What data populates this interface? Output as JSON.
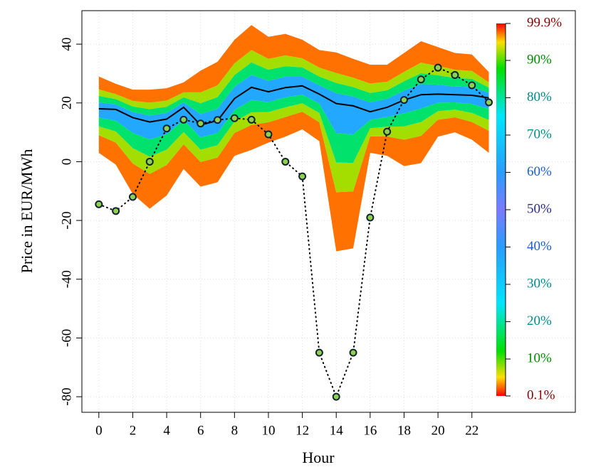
{
  "chart_data": {
    "type": "fan",
    "x_label": "Hour",
    "y_label": "Price in EUR/MWh",
    "x": [
      0,
      1,
      2,
      3,
      4,
      5,
      6,
      7,
      8,
      9,
      10,
      11,
      12,
      13,
      14,
      15,
      16,
      17,
      18,
      19,
      20,
      21,
      22,
      23
    ],
    "xlim": [
      -1,
      28.1
    ],
    "xticks": [
      0,
      2,
      4,
      6,
      8,
      10,
      12,
      14,
      16,
      18,
      20,
      22
    ],
    "ylim": [
      -85.3,
      51.4
    ],
    "yticks": [
      -80,
      -60,
      -40,
      -20,
      0,
      20,
      40
    ],
    "grid": true,
    "quantiles": [
      {
        "level": 0.1,
        "values": [
          3,
          -1,
          -11,
          -16,
          -11.5,
          -2.5,
          -8.5,
          -7,
          2,
          4,
          6.5,
          8.5,
          11,
          7,
          -30.5,
          -29.5,
          3,
          2,
          -1.5,
          -0.5,
          8.5,
          10,
          7.5,
          3
        ]
      },
      {
        "level": 5,
        "values": [
          9,
          6.5,
          -0.6,
          -4.2,
          -1.1,
          5.9,
          -0.1,
          1.4,
          9.8,
          12.5,
          13.4,
          15.2,
          17,
          13.4,
          -10.4,
          -10.1,
          8.6,
          8.6,
          7.5,
          8.8,
          14.3,
          15.1,
          13.5,
          10.5
        ]
      },
      {
        "level": 10,
        "values": [
          12,
          10.3,
          4.6,
          1.7,
          4.1,
          10.1,
          4.1,
          5.6,
          13.7,
          16.8,
          16.9,
          18.5,
          19.9,
          16.6,
          -0.3,
          -0.4,
          11.4,
          11.9,
          12,
          13.5,
          17.2,
          17.7,
          16.6,
          14.2
        ]
      },
      {
        "level": 25,
        "values": [
          15,
          14,
          9.8,
          7.6,
          9.3,
          14.3,
          8.3,
          9.8,
          17.6,
          21,
          20.3,
          21.9,
          22.8,
          19.8,
          9.7,
          9.3,
          14.2,
          15.2,
          16.5,
          18.1,
          20.1,
          20.2,
          19.6,
          18
        ]
      },
      {
        "level": 50,
        "values": [
          18,
          17.8,
          15,
          13.5,
          14.5,
          18.5,
          12.5,
          14,
          21.5,
          25.3,
          23.8,
          25.2,
          25.8,
          23,
          19.8,
          19,
          17,
          18.5,
          21,
          22.8,
          23,
          22.8,
          22.6,
          21.7
        ]
      },
      {
        "level": 75,
        "values": [
          20.2,
          19.5,
          16.9,
          15.7,
          16.6,
          20.2,
          16.2,
          18,
          25.5,
          29.5,
          27.5,
          28.9,
          28.9,
          26,
          23.3,
          22.2,
          20.2,
          21.4,
          24.2,
          26.4,
          26.2,
          25.6,
          25.4,
          23.5
        ]
      },
      {
        "level": 90,
        "values": [
          22.4,
          21.3,
          18.8,
          17.9,
          18.7,
          21.9,
          19.9,
          22,
          29.5,
          33.8,
          31.3,
          32.5,
          32.1,
          29,
          26.8,
          25.4,
          23.4,
          24.3,
          27.4,
          30.1,
          29.4,
          28.5,
          28.2,
          25.2
        ]
      },
      {
        "level": 95,
        "values": [
          24.6,
          23,
          20.7,
          20.1,
          20.8,
          23.6,
          23.6,
          26,
          33.5,
          38,
          35,
          36.2,
          35.2,
          32,
          30.2,
          28.6,
          26.6,
          27.2,
          30.6,
          33.7,
          32.6,
          31.3,
          30.9,
          27
        ]
      },
      {
        "level": 99.9,
        "values": [
          29,
          26.5,
          24.5,
          24.5,
          25,
          27,
          31,
          34,
          41.5,
          46.5,
          42.5,
          43.5,
          41.5,
          38,
          37.2,
          35,
          33,
          33,
          37,
          41,
          39,
          37,
          36.5,
          30.5
        ]
      }
    ],
    "median_color": "#000000",
    "observed": {
      "color": "#8fd14f",
      "values": [
        -14.5,
        -16.8,
        -12,
        0,
        11.3,
        14.3,
        13,
        14.2,
        14.8,
        14.3,
        9.3,
        0,
        -5,
        -65,
        -80,
        -65,
        -19,
        10.2,
        21,
        28,
        32,
        29.5,
        26,
        20.2
      ]
    },
    "colorscale": [
      [
        0,
        "#ff0000"
      ],
      [
        5,
        "#ffdd00"
      ],
      [
        12,
        "#00e000"
      ],
      [
        25,
        "#00e5ff"
      ],
      [
        40,
        "#2a9cff"
      ],
      [
        50,
        "#7a7aff"
      ],
      [
        60,
        "#2a9cff"
      ],
      [
        75,
        "#00e5ff"
      ],
      [
        88,
        "#00e000"
      ],
      [
        95,
        "#ffdd00"
      ],
      [
        100,
        "#ff0000"
      ]
    ],
    "colorbar": {
      "lim": [
        0.1,
        99.9
      ],
      "ticks": [
        {
          "value": 0.1,
          "label": "0.1%"
        },
        {
          "value": 10,
          "label": "10%"
        },
        {
          "value": 20,
          "label": "20%"
        },
        {
          "value": 30,
          "label": "30%"
        },
        {
          "value": 40,
          "label": "40%"
        },
        {
          "value": 50,
          "label": "50%"
        },
        {
          "value": 60,
          "label": "60%"
        },
        {
          "value": 70,
          "label": "70%"
        },
        {
          "value": 80,
          "label": "80%"
        },
        {
          "value": 90,
          "label": "90%"
        },
        {
          "value": 99.9,
          "label": "99.9%"
        }
      ],
      "label_colors": [
        "#8b0000",
        "#008b00",
        "#008b8b",
        "#008b8b",
        "#1e60c8",
        "#2a2a8b",
        "#1e60c8",
        "#008b8b",
        "#008b8b",
        "#008b00",
        "#8b0000"
      ]
    }
  }
}
